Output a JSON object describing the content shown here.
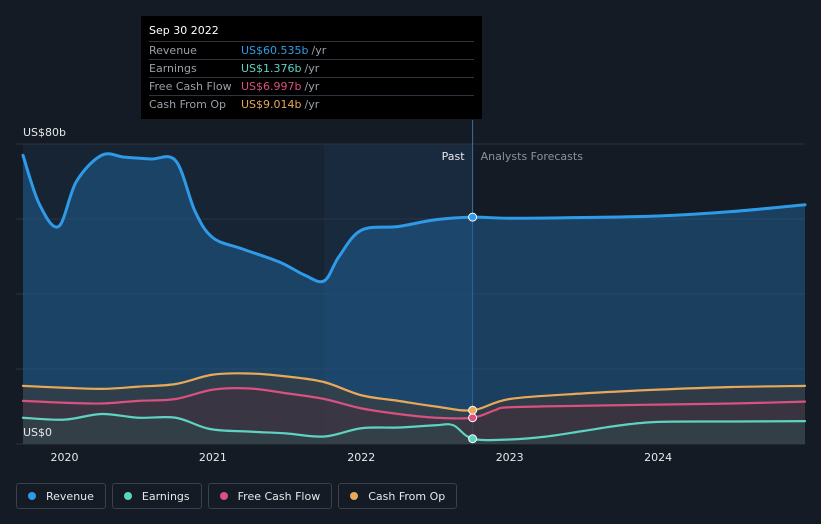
{
  "tooltip": {
    "date": "Sep 30 2022",
    "rows": [
      {
        "name": "Revenue",
        "value": "US$60.535b",
        "unit": "/yr",
        "color": "#2f9ae8"
      },
      {
        "name": "Earnings",
        "value": "US$1.376b",
        "unit": "/yr",
        "color": "#5fd3c1"
      },
      {
        "name": "Free Cash Flow",
        "value": "US$6.997b",
        "unit": "/yr",
        "color": "#d9517f"
      },
      {
        "name": "Cash From Op",
        "value": "US$9.014b",
        "unit": "/yr",
        "color": "#e8a85a"
      }
    ]
  },
  "chart_data": {
    "type": "line",
    "y_top_label": "US$80b",
    "y_bottom_label": "US$0",
    "ylim": [
      0,
      80
    ],
    "xlim": [
      2019.7,
      2024.99
    ],
    "x_ticks": [
      2020,
      2021,
      2022,
      2023,
      2024
    ],
    "x_tick_labels": [
      "2020",
      "2021",
      "2022",
      "2023",
      "2024"
    ],
    "divider_x": 2022.75,
    "past_label": "Past",
    "forecast_label": "Analysts Forecasts",
    "series": [
      {
        "name": "Revenue",
        "color": "#2f9ae8",
        "points": [
          [
            2019.72,
            77
          ],
          [
            2019.83,
            64
          ],
          [
            2019.96,
            58
          ],
          [
            2020.08,
            70
          ],
          [
            2020.25,
            77
          ],
          [
            2020.4,
            76.5
          ],
          [
            2020.58,
            76
          ],
          [
            2020.75,
            75.5
          ],
          [
            2020.88,
            62
          ],
          [
            2021.0,
            55
          ],
          [
            2021.2,
            52
          ],
          [
            2021.45,
            48.5
          ],
          [
            2021.62,
            45
          ],
          [
            2021.75,
            43.5
          ],
          [
            2021.85,
            50
          ],
          [
            2022.0,
            57
          ],
          [
            2022.25,
            58
          ],
          [
            2022.5,
            59.8
          ],
          [
            2022.75,
            60.5
          ],
          [
            2023.0,
            60.2
          ],
          [
            2023.5,
            60.4
          ],
          [
            2024.0,
            60.8
          ],
          [
            2024.5,
            62
          ],
          [
            2024.99,
            63.8
          ]
        ]
      },
      {
        "name": "Earnings",
        "color": "#5fd3c1",
        "points": [
          [
            2019.72,
            7
          ],
          [
            2020.0,
            6.5
          ],
          [
            2020.25,
            8
          ],
          [
            2020.5,
            7
          ],
          [
            2020.75,
            7
          ],
          [
            2020.98,
            4
          ],
          [
            2021.25,
            3.3
          ],
          [
            2021.5,
            2.8
          ],
          [
            2021.75,
            2
          ],
          [
            2022.0,
            4.2
          ],
          [
            2022.25,
            4.4
          ],
          [
            2022.5,
            5
          ],
          [
            2022.62,
            5
          ],
          [
            2022.75,
            1.4
          ],
          [
            2023.0,
            1.2
          ],
          [
            2023.25,
            2
          ],
          [
            2023.5,
            3.5
          ],
          [
            2023.75,
            5
          ],
          [
            2024.0,
            5.9
          ],
          [
            2024.5,
            6
          ],
          [
            2024.99,
            6.1
          ]
        ]
      },
      {
        "name": "Free Cash Flow",
        "color": "#d9517f",
        "points": [
          [
            2019.72,
            11.5
          ],
          [
            2020.0,
            11
          ],
          [
            2020.25,
            10.8
          ],
          [
            2020.5,
            11.5
          ],
          [
            2020.75,
            12
          ],
          [
            2021.0,
            14.5
          ],
          [
            2021.25,
            14.8
          ],
          [
            2021.5,
            13.5
          ],
          [
            2021.75,
            12
          ],
          [
            2022.0,
            9.5
          ],
          [
            2022.25,
            8
          ],
          [
            2022.5,
            7
          ],
          [
            2022.75,
            7
          ],
          [
            2022.9,
            9
          ],
          [
            2023.0,
            9.8
          ],
          [
            2023.5,
            10.2
          ],
          [
            2024.0,
            10.5
          ],
          [
            2024.5,
            10.8
          ],
          [
            2024.99,
            11.3
          ]
        ]
      },
      {
        "name": "Cash From Op",
        "color": "#e8a85a",
        "points": [
          [
            2019.72,
            15.5
          ],
          [
            2020.0,
            15
          ],
          [
            2020.25,
            14.7
          ],
          [
            2020.5,
            15.3
          ],
          [
            2020.75,
            16
          ],
          [
            2021.0,
            18.5
          ],
          [
            2021.25,
            18.8
          ],
          [
            2021.5,
            18
          ],
          [
            2021.75,
            16.5
          ],
          [
            2022.0,
            13
          ],
          [
            2022.25,
            11.5
          ],
          [
            2022.5,
            10
          ],
          [
            2022.75,
            9
          ],
          [
            2023.0,
            12
          ],
          [
            2023.5,
            13.5
          ],
          [
            2024.0,
            14.5
          ],
          [
            2024.5,
            15.2
          ],
          [
            2024.99,
            15.5
          ]
        ]
      }
    ]
  },
  "legend": [
    {
      "label": "Revenue",
      "color": "#2f9ae8"
    },
    {
      "label": "Earnings",
      "color": "#5fd3c1"
    },
    {
      "label": "Free Cash Flow",
      "color": "#d9517f"
    },
    {
      "label": "Cash From Op",
      "color": "#e8a85a"
    }
  ]
}
